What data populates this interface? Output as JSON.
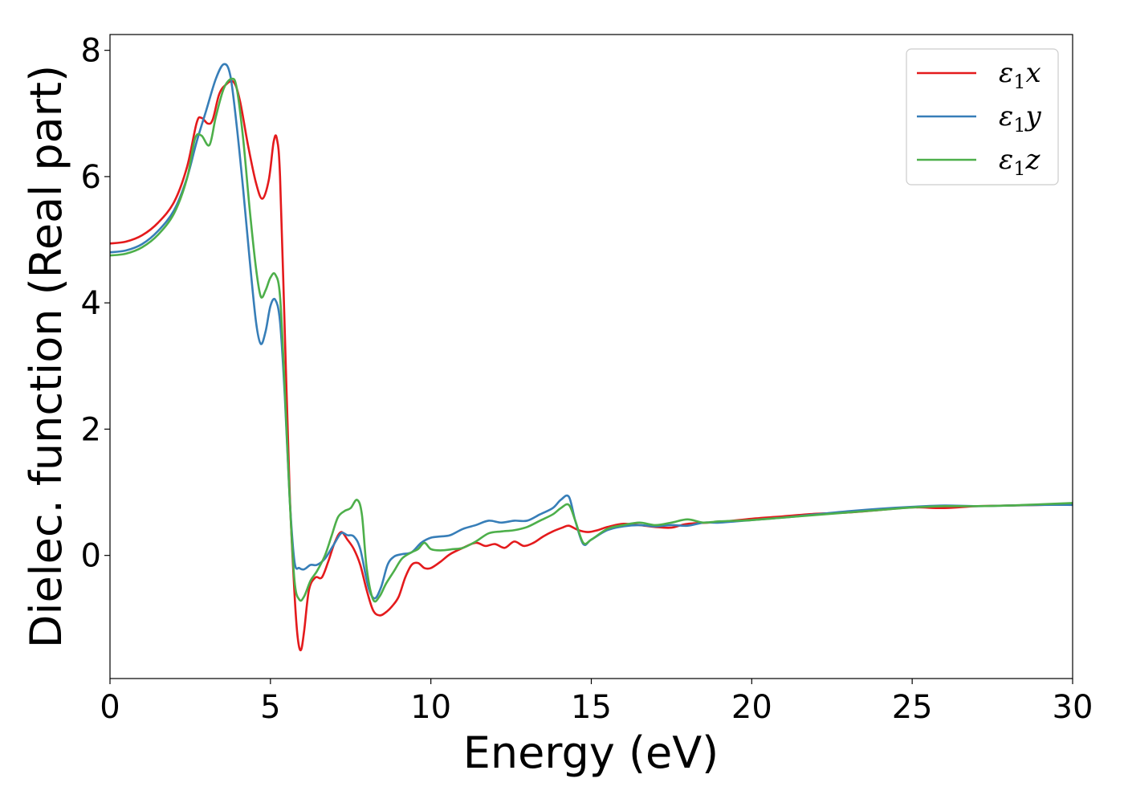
{
  "chart_data": {
    "type": "line",
    "title": "",
    "xlabel": "Energy (eV)",
    "ylabel": "Dielec. function (Real part)",
    "xlim": [
      0,
      30
    ],
    "ylim": [
      -1.95,
      8.25
    ],
    "xticks": [
      0,
      5,
      10,
      15,
      20,
      25,
      30
    ],
    "yticks": [
      0,
      2,
      4,
      6,
      8
    ],
    "grid": false,
    "legend_position": "top-right",
    "series": [
      {
        "name": "ε₁x",
        "legend_main": "ε",
        "legend_sub": "1",
        "legend_tail": "x",
        "color": "#e41a1c",
        "points": [
          [
            0,
            4.94
          ],
          [
            0.5,
            4.97
          ],
          [
            1,
            5.07
          ],
          [
            1.5,
            5.27
          ],
          [
            2,
            5.6
          ],
          [
            2.4,
            6.15
          ],
          [
            2.7,
            6.85
          ],
          [
            2.85,
            6.93
          ],
          [
            3.05,
            6.84
          ],
          [
            3.2,
            6.9
          ],
          [
            3.4,
            7.3
          ],
          [
            3.6,
            7.45
          ],
          [
            3.85,
            7.5
          ],
          [
            4.05,
            7.2
          ],
          [
            4.3,
            6.5
          ],
          [
            4.55,
            5.9
          ],
          [
            4.75,
            5.65
          ],
          [
            4.95,
            5.95
          ],
          [
            5.1,
            6.55
          ],
          [
            5.2,
            6.6
          ],
          [
            5.3,
            6.0
          ],
          [
            5.45,
            3.5
          ],
          [
            5.6,
            1.0
          ],
          [
            5.75,
            -0.6
          ],
          [
            5.85,
            -1.3
          ],
          [
            5.95,
            -1.5
          ],
          [
            6.05,
            -1.2
          ],
          [
            6.2,
            -0.55
          ],
          [
            6.4,
            -0.35
          ],
          [
            6.6,
            -0.35
          ],
          [
            6.8,
            -0.1
          ],
          [
            7.0,
            0.2
          ],
          [
            7.2,
            0.37
          ],
          [
            7.4,
            0.25
          ],
          [
            7.6,
            0.1
          ],
          [
            7.8,
            -0.15
          ],
          [
            8.0,
            -0.55
          ],
          [
            8.2,
            -0.87
          ],
          [
            8.4,
            -0.95
          ],
          [
            8.6,
            -0.9
          ],
          [
            8.8,
            -0.8
          ],
          [
            9.0,
            -0.65
          ],
          [
            9.2,
            -0.35
          ],
          [
            9.4,
            -0.15
          ],
          [
            9.6,
            -0.12
          ],
          [
            9.8,
            -0.2
          ],
          [
            10.0,
            -0.2
          ],
          [
            10.3,
            -0.1
          ],
          [
            10.6,
            0.02
          ],
          [
            11.0,
            0.12
          ],
          [
            11.4,
            0.2
          ],
          [
            11.7,
            0.15
          ],
          [
            12.0,
            0.18
          ],
          [
            12.3,
            0.12
          ],
          [
            12.6,
            0.22
          ],
          [
            12.9,
            0.15
          ],
          [
            13.2,
            0.2
          ],
          [
            13.5,
            0.3
          ],
          [
            13.8,
            0.38
          ],
          [
            14.1,
            0.44
          ],
          [
            14.3,
            0.47
          ],
          [
            14.6,
            0.4
          ],
          [
            14.9,
            0.37
          ],
          [
            15.2,
            0.4
          ],
          [
            15.5,
            0.45
          ],
          [
            16.0,
            0.5
          ],
          [
            16.5,
            0.48
          ],
          [
            17.0,
            0.45
          ],
          [
            17.5,
            0.44
          ],
          [
            18.0,
            0.5
          ],
          [
            19.0,
            0.53
          ],
          [
            20.0,
            0.58
          ],
          [
            21.0,
            0.62
          ],
          [
            22.0,
            0.66
          ],
          [
            23.0,
            0.68
          ],
          [
            24.0,
            0.72
          ],
          [
            25.0,
            0.76
          ],
          [
            26.0,
            0.75
          ],
          [
            27.0,
            0.78
          ],
          [
            28.0,
            0.79
          ],
          [
            29.0,
            0.8
          ],
          [
            30.0,
            0.81
          ]
        ]
      },
      {
        "name": "ε₁y",
        "legend_main": "ε",
        "legend_sub": "1",
        "legend_tail": "y",
        "color": "#377eb8",
        "points": [
          [
            0,
            4.8
          ],
          [
            0.5,
            4.83
          ],
          [
            1,
            4.93
          ],
          [
            1.5,
            5.14
          ],
          [
            2,
            5.47
          ],
          [
            2.4,
            5.98
          ],
          [
            2.7,
            6.55
          ],
          [
            3.0,
            7.05
          ],
          [
            3.3,
            7.55
          ],
          [
            3.55,
            7.78
          ],
          [
            3.75,
            7.6
          ],
          [
            3.95,
            6.8
          ],
          [
            4.15,
            5.8
          ],
          [
            4.35,
            4.7
          ],
          [
            4.55,
            3.7
          ],
          [
            4.7,
            3.35
          ],
          [
            4.85,
            3.55
          ],
          [
            5.0,
            3.95
          ],
          [
            5.15,
            4.05
          ],
          [
            5.3,
            3.7
          ],
          [
            5.45,
            2.5
          ],
          [
            5.6,
            0.9
          ],
          [
            5.75,
            -0.1
          ],
          [
            5.9,
            -0.2
          ],
          [
            6.05,
            -0.22
          ],
          [
            6.25,
            -0.15
          ],
          [
            6.45,
            -0.15
          ],
          [
            6.7,
            -0.05
          ],
          [
            6.95,
            0.15
          ],
          [
            7.2,
            0.35
          ],
          [
            7.4,
            0.32
          ],
          [
            7.6,
            0.3
          ],
          [
            7.8,
            0.1
          ],
          [
            8.05,
            -0.5
          ],
          [
            8.25,
            -0.68
          ],
          [
            8.45,
            -0.5
          ],
          [
            8.65,
            -0.15
          ],
          [
            8.85,
            -0.02
          ],
          [
            9.1,
            0.02
          ],
          [
            9.4,
            0.05
          ],
          [
            9.7,
            0.2
          ],
          [
            10.0,
            0.28
          ],
          [
            10.3,
            0.3
          ],
          [
            10.6,
            0.32
          ],
          [
            11.0,
            0.42
          ],
          [
            11.4,
            0.48
          ],
          [
            11.8,
            0.55
          ],
          [
            12.2,
            0.52
          ],
          [
            12.6,
            0.55
          ],
          [
            13.0,
            0.55
          ],
          [
            13.4,
            0.65
          ],
          [
            13.8,
            0.75
          ],
          [
            14.05,
            0.88
          ],
          [
            14.3,
            0.93
          ],
          [
            14.5,
            0.55
          ],
          [
            14.75,
            0.18
          ],
          [
            15.0,
            0.25
          ],
          [
            15.5,
            0.4
          ],
          [
            16.0,
            0.46
          ],
          [
            16.5,
            0.48
          ],
          [
            17.0,
            0.46
          ],
          [
            17.5,
            0.48
          ],
          [
            18.0,
            0.47
          ],
          [
            18.5,
            0.52
          ],
          [
            19.0,
            0.52
          ],
          [
            20.0,
            0.56
          ],
          [
            21.0,
            0.6
          ],
          [
            22.0,
            0.65
          ],
          [
            23.0,
            0.7
          ],
          [
            24.0,
            0.74
          ],
          [
            25.0,
            0.77
          ],
          [
            26.0,
            0.79
          ],
          [
            27.0,
            0.78
          ],
          [
            28.0,
            0.79
          ],
          [
            29.0,
            0.8
          ],
          [
            30.0,
            0.8
          ]
        ]
      },
      {
        "name": "ε₁z",
        "legend_main": "ε",
        "legend_sub": "1",
        "legend_tail": "z",
        "color": "#4daf4a",
        "points": [
          [
            0,
            4.75
          ],
          [
            0.5,
            4.78
          ],
          [
            1,
            4.88
          ],
          [
            1.5,
            5.08
          ],
          [
            2,
            5.42
          ],
          [
            2.4,
            5.97
          ],
          [
            2.65,
            6.6
          ],
          [
            2.85,
            6.65
          ],
          [
            3.1,
            6.5
          ],
          [
            3.3,
            6.95
          ],
          [
            3.55,
            7.4
          ],
          [
            3.8,
            7.55
          ],
          [
            3.95,
            7.4
          ],
          [
            4.15,
            6.6
          ],
          [
            4.35,
            5.5
          ],
          [
            4.55,
            4.55
          ],
          [
            4.7,
            4.1
          ],
          [
            4.85,
            4.2
          ],
          [
            5.0,
            4.4
          ],
          [
            5.15,
            4.45
          ],
          [
            5.3,
            4.1
          ],
          [
            5.45,
            2.6
          ],
          [
            5.6,
            0.9
          ],
          [
            5.75,
            -0.4
          ],
          [
            5.9,
            -0.7
          ],
          [
            6.05,
            -0.65
          ],
          [
            6.25,
            -0.4
          ],
          [
            6.45,
            -0.25
          ],
          [
            6.7,
            0.0
          ],
          [
            6.9,
            0.3
          ],
          [
            7.1,
            0.6
          ],
          [
            7.3,
            0.7
          ],
          [
            7.5,
            0.75
          ],
          [
            7.7,
            0.88
          ],
          [
            7.85,
            0.65
          ],
          [
            8.0,
            -0.2
          ],
          [
            8.2,
            -0.7
          ],
          [
            8.4,
            -0.65
          ],
          [
            8.6,
            -0.45
          ],
          [
            8.85,
            -0.25
          ],
          [
            9.1,
            -0.05
          ],
          [
            9.4,
            0.05
          ],
          [
            9.6,
            0.1
          ],
          [
            9.8,
            0.2
          ],
          [
            10.0,
            0.1
          ],
          [
            10.3,
            0.08
          ],
          [
            10.7,
            0.1
          ],
          [
            11.0,
            0.12
          ],
          [
            11.4,
            0.22
          ],
          [
            11.8,
            0.35
          ],
          [
            12.2,
            0.38
          ],
          [
            12.6,
            0.4
          ],
          [
            13.0,
            0.45
          ],
          [
            13.4,
            0.55
          ],
          [
            13.8,
            0.65
          ],
          [
            14.05,
            0.75
          ],
          [
            14.3,
            0.8
          ],
          [
            14.5,
            0.55
          ],
          [
            14.75,
            0.2
          ],
          [
            15.0,
            0.25
          ],
          [
            15.5,
            0.42
          ],
          [
            16.0,
            0.48
          ],
          [
            16.5,
            0.52
          ],
          [
            17.0,
            0.48
          ],
          [
            17.5,
            0.52
          ],
          [
            18.0,
            0.57
          ],
          [
            18.5,
            0.52
          ],
          [
            19.0,
            0.54
          ],
          [
            20.0,
            0.56
          ],
          [
            21.0,
            0.6
          ],
          [
            22.0,
            0.64
          ],
          [
            23.0,
            0.68
          ],
          [
            24.0,
            0.72
          ],
          [
            25.0,
            0.76
          ],
          [
            26.0,
            0.78
          ],
          [
            27.0,
            0.78
          ],
          [
            28.0,
            0.79
          ],
          [
            29.0,
            0.81
          ],
          [
            30.0,
            0.83
          ]
        ]
      }
    ]
  }
}
